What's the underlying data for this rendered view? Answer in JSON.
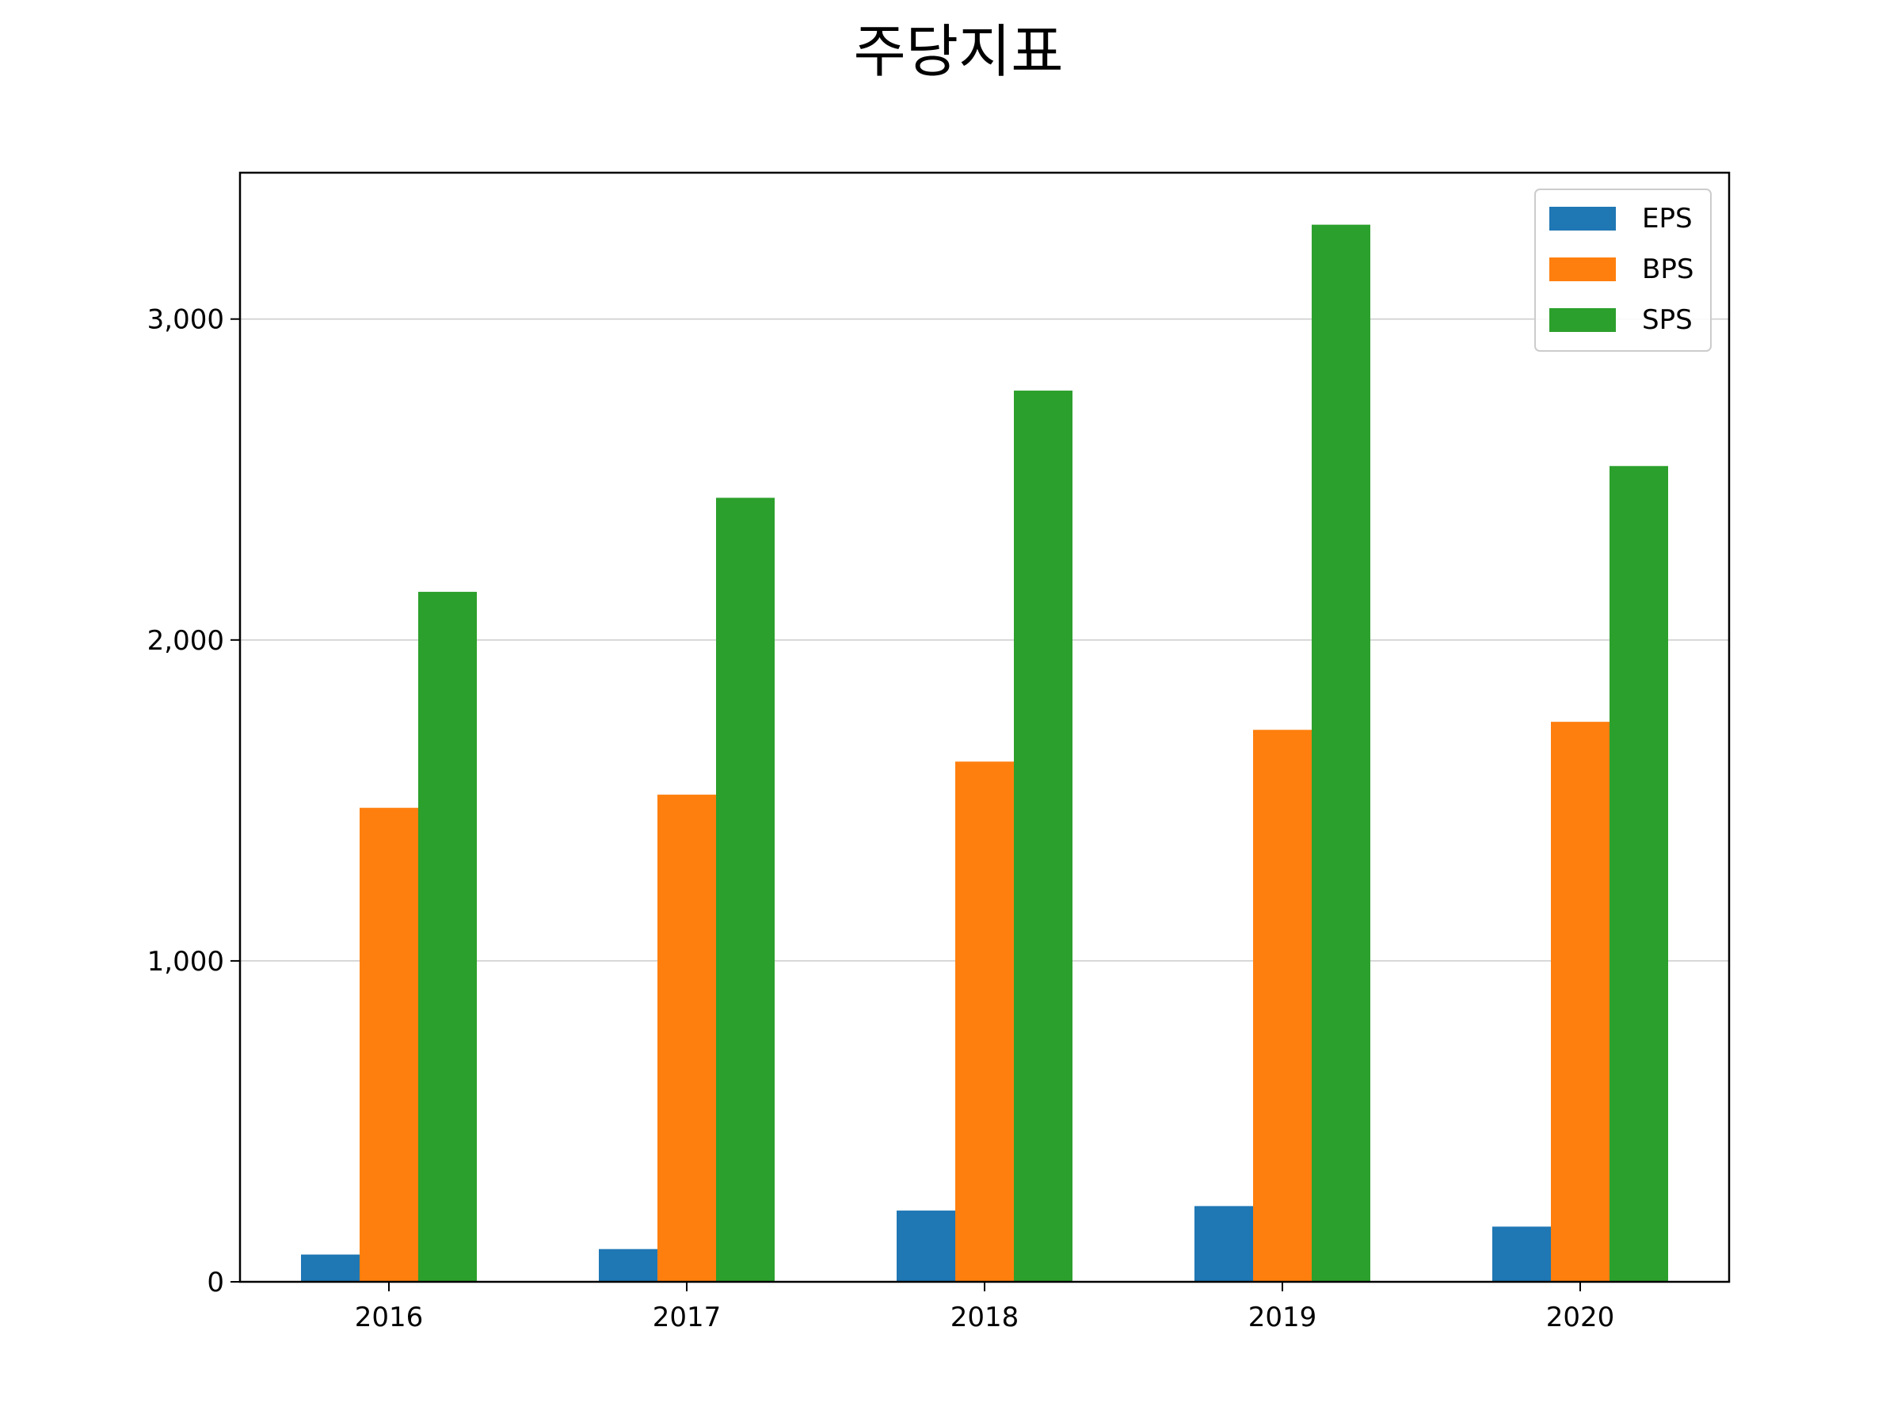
{
  "chart_data": {
    "type": "bar",
    "title": "주당지표",
    "xlabel": "",
    "ylabel": "",
    "categories": [
      "2016",
      "2017",
      "2018",
      "2019",
      "2020"
    ],
    "series": [
      {
        "name": "EPS",
        "color": "#1f77b4",
        "values": [
          85,
          102,
          222,
          236,
          172
        ]
      },
      {
        "name": "BPS",
        "color": "#ff7f0e",
        "values": [
          1477,
          1518,
          1621,
          1720,
          1745
        ]
      },
      {
        "name": "SPS",
        "color": "#2ca02c",
        "values": [
          2150,
          2443,
          2777,
          3294,
          2542
        ]
      }
    ],
    "ylim": [
      0,
      3456
    ],
    "yticks": [
      0,
      1000,
      2000,
      3000
    ],
    "ytick_labels": [
      "0",
      "1,000",
      "2,000",
      "3,000"
    ],
    "grid": "y",
    "legend_position": "top-right"
  }
}
